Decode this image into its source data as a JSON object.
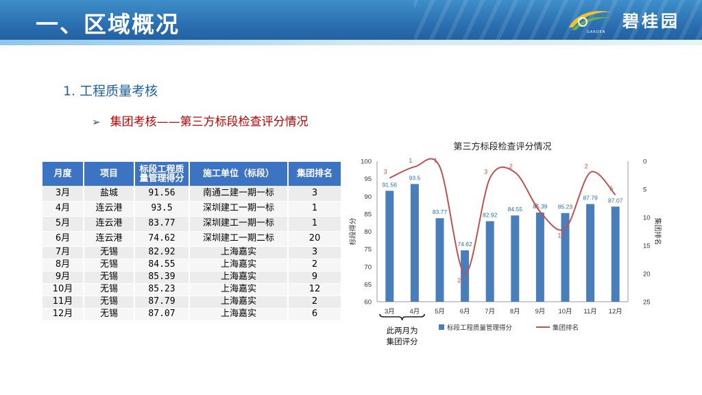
{
  "header": {
    "title": "一、区域概况",
    "logo_text": "碧桂园",
    "logo_sub": "GARDEN"
  },
  "section": {
    "title": "1. 工程质量考核",
    "subtitle": "集团考核——第三方标段检查评分情况"
  },
  "table": {
    "headers": [
      "月度",
      "项目",
      "标段工程质量管理得分",
      "施工单位（标段）",
      "集团排名"
    ],
    "rows": [
      [
        "3月",
        "盐城",
        "91.56",
        "南通二建一期一标",
        "3"
      ],
      [
        "4月",
        "连云港",
        "93.5",
        "深圳建工一期一标",
        "1"
      ],
      [
        "5月",
        "连云港",
        "83.77",
        "深圳建工一期一标",
        "1"
      ],
      [
        "6月",
        "连云港",
        "74.62",
        "深圳建工一期二标",
        "20"
      ],
      [
        "7月",
        "无锡",
        "82.92",
        "上海嘉实",
        "3"
      ],
      [
        "8月",
        "无锡",
        "84.55",
        "上海嘉实",
        "2"
      ],
      [
        "9月",
        "无锡",
        "85.39",
        "上海嘉实",
        "9"
      ],
      [
        "10月",
        "无锡",
        "85.23",
        "上海嘉实",
        "12"
      ],
      [
        "11月",
        "无锡",
        "87.79",
        "上海嘉实",
        "2"
      ],
      [
        "12月",
        "无锡",
        "87.07",
        "上海嘉实",
        "6"
      ]
    ]
  },
  "colors": {
    "header_blue": "#2a6fb0",
    "bar_blue": "#4a7ebb",
    "line_red": "#c0504d",
    "title_blue": "#1f5fa8",
    "subtitle_red": "#c00000"
  },
  "chart_data": {
    "type": "bar",
    "title": "第三方标段检查评分情况",
    "categories": [
      "3月",
      "4月",
      "5月",
      "6月",
      "7月",
      "8月",
      "9月",
      "10月",
      "11月",
      "12月"
    ],
    "series": [
      {
        "name": "标段工程质量管理得分",
        "type": "bar",
        "axis": "left",
        "values": [
          91.56,
          93.5,
          83.77,
          74.62,
          82.92,
          84.55,
          85.39,
          85.23,
          87.79,
          87.07
        ],
        "labels": [
          "91.56",
          "93.5",
          "83.77",
          "74.62",
          "82.92",
          "84.55",
          "85.39",
          "85.23",
          "87.79",
          "87.07"
        ]
      },
      {
        "name": "集团排名",
        "type": "line",
        "axis": "right",
        "inverted": true,
        "values": [
          3,
          1,
          1,
          20,
          3,
          2,
          9,
          12,
          2,
          6
        ],
        "labels": [
          "3",
          "1",
          "1",
          "20",
          "3",
          "2",
          "9",
          "12",
          "2",
          "6"
        ]
      }
    ],
    "ylabel": "标段得分",
    "y2label": "集团排名",
    "ylim": [
      60,
      100
    ],
    "yticks": [
      "60",
      "65",
      "70",
      "75",
      "80",
      "85",
      "90",
      "95",
      "100"
    ],
    "y2lim": [
      0,
      25
    ],
    "y2ticks": [
      "0",
      "5",
      "10",
      "15",
      "20",
      "25"
    ],
    "legend_position": "bottom",
    "grid": false,
    "annotation": {
      "brace_over": [
        "3月",
        "4月"
      ],
      "text": "此两月为\n集团评分"
    }
  }
}
